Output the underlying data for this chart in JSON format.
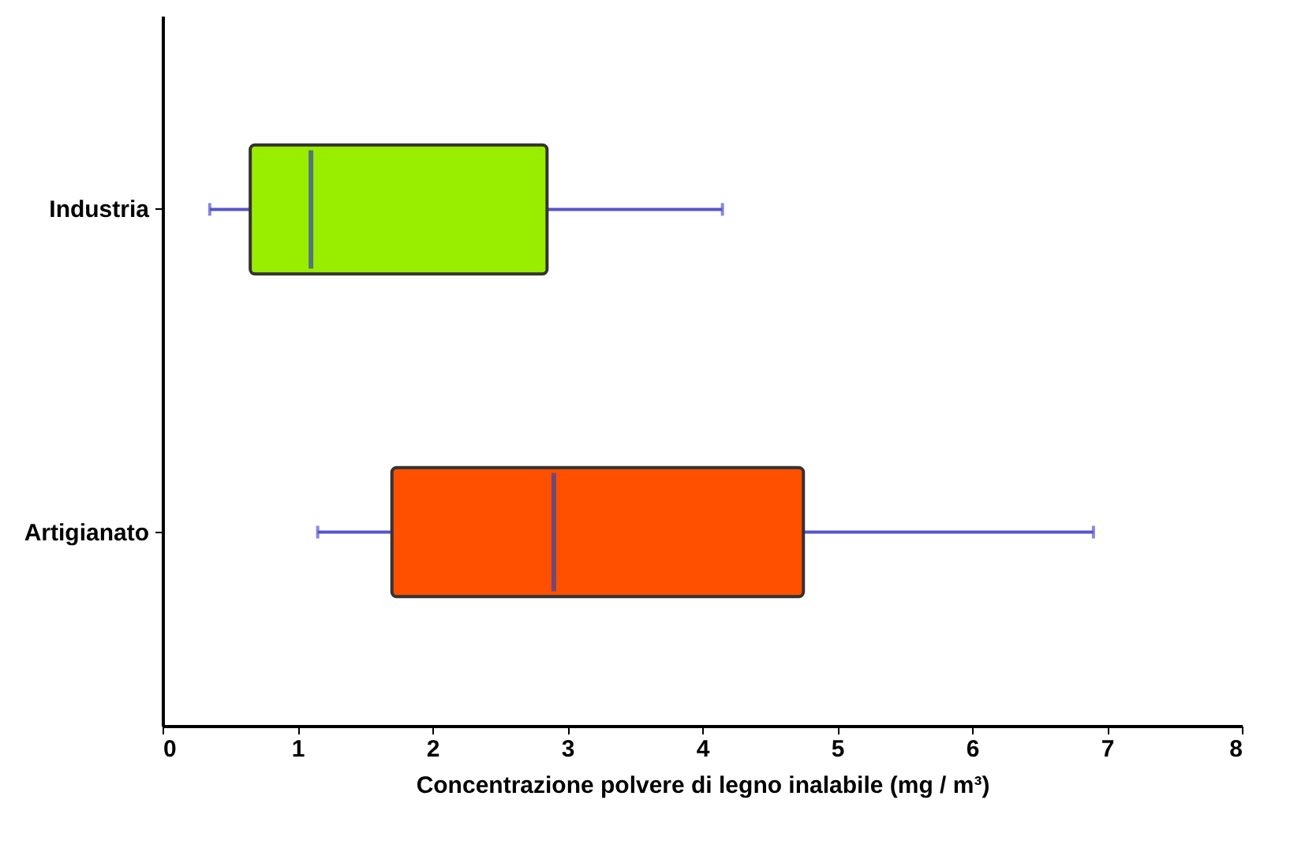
{
  "chart_data": {
    "type": "box",
    "orientation": "horizontal",
    "xlabel": "Concentrazione polvere di legno inalabile (mg / m³)",
    "categories": [
      "Industria",
      "Artigianato"
    ],
    "colors": [
      "#99ee00",
      "#ff5000"
    ],
    "boxes": [
      {
        "low": 0.35,
        "q1": 0.65,
        "median": 1.1,
        "q3": 2.85,
        "high": 4.15
      },
      {
        "low": 1.15,
        "q1": 1.7,
        "median": 2.9,
        "q3": 4.75,
        "high": 6.9
      }
    ],
    "xlim": [
      0,
      8
    ],
    "xticks": [
      0,
      1,
      2,
      3,
      4,
      5,
      6,
      7,
      8
    ],
    "grid": false
  }
}
